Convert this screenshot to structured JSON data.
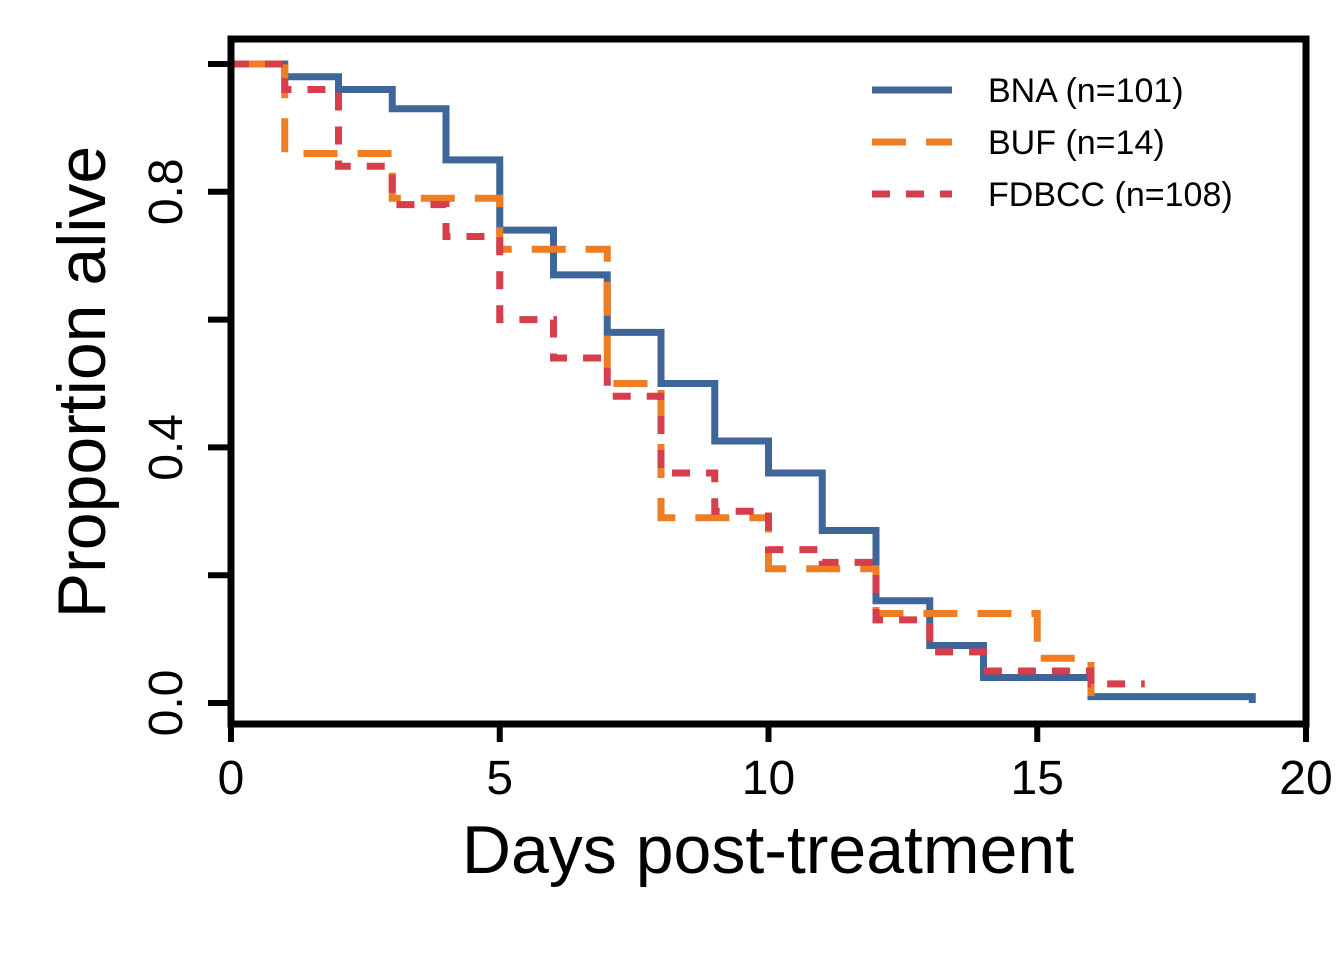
{
  "chart_data": {
    "type": "line",
    "subtype": "kaplan-meier-step",
    "title": "",
    "xlabel": "Days post-treatment",
    "ylabel": "Proportion alive",
    "xlim": [
      0,
      20
    ],
    "ylim": [
      0,
      1
    ],
    "x_ticks": [
      0,
      5,
      10,
      15,
      20
    ],
    "x_tick_labels": [
      "0",
      "5",
      "10",
      "15",
      "20"
    ],
    "y_ticks": [
      0,
      0.2,
      0.4,
      0.6,
      0.8,
      1.0
    ],
    "y_tick_labels": [
      "0.0",
      "",
      "0.4",
      "",
      "0.8",
      ""
    ],
    "grid": false,
    "legend_position": "top-right",
    "series": [
      {
        "name": "BNA (n=101)",
        "color": "#3f6699",
        "dash": "solid",
        "x": [
          0,
          1,
          2,
          3,
          4,
          5,
          6,
          7,
          8,
          9,
          10,
          11,
          12,
          13,
          14,
          16,
          19
        ],
        "y": [
          1.0,
          0.98,
          0.96,
          0.93,
          0.85,
          0.74,
          0.67,
          0.58,
          0.5,
          0.41,
          0.36,
          0.27,
          0.16,
          0.09,
          0.04,
          0.01,
          0.0
        ]
      },
      {
        "name": "BUF (n=14)",
        "color": "#ee7d24",
        "dash": "long-dash",
        "x": [
          0,
          1,
          3,
          5,
          7,
          8,
          10,
          12,
          15,
          16
        ],
        "y": [
          1.0,
          0.86,
          0.79,
          0.71,
          0.5,
          0.29,
          0.21,
          0.14,
          0.07,
          0.0
        ]
      },
      {
        "name": "FDBCC (n=108)",
        "color": "#d63e4b",
        "dash": "short-dash",
        "x": [
          0,
          1,
          2,
          3,
          4,
          5,
          6,
          7,
          8,
          9,
          10,
          11,
          12,
          13,
          14,
          16,
          17
        ],
        "y": [
          1.0,
          0.96,
          0.84,
          0.78,
          0.73,
          0.6,
          0.54,
          0.48,
          0.36,
          0.3,
          0.24,
          0.22,
          0.13,
          0.08,
          0.05,
          0.03,
          0.03
        ]
      }
    ]
  }
}
